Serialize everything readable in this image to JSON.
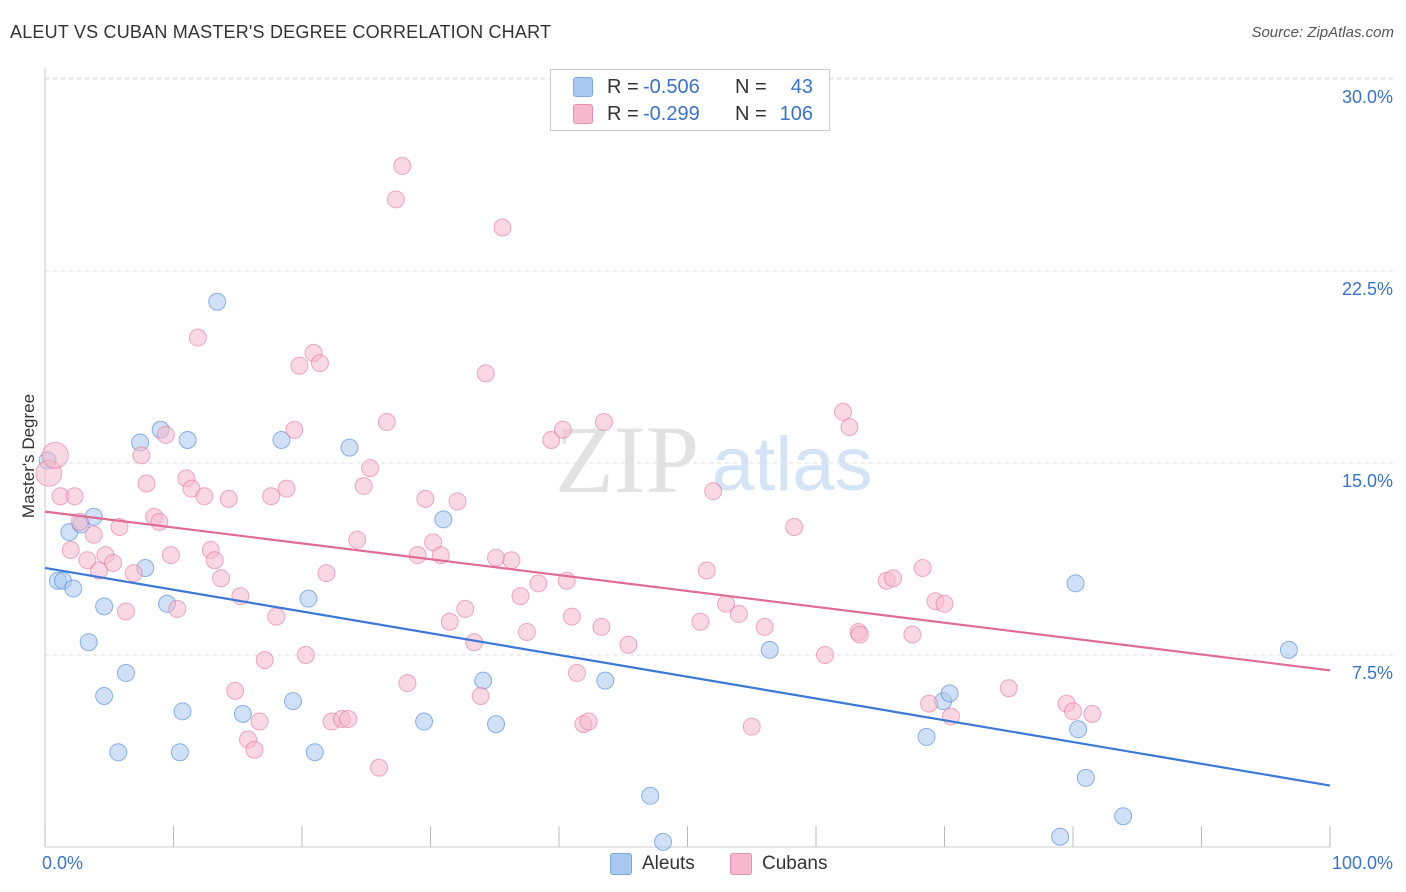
{
  "title": "ALEUT VS CUBAN MASTER'S DEGREE CORRELATION CHART",
  "source": "Source: ZipAtlas.com",
  "watermark": {
    "zip": "ZIP",
    "atlas": "atlas"
  },
  "legend": {
    "rows": [
      {
        "r_label": "R =",
        "r_value": "-0.506",
        "n_label": "N =",
        "n_value": "43",
        "color": "#a9c8f0"
      },
      {
        "r_label": "R =",
        "r_value": "-0.299",
        "n_label": "N =",
        "n_value": "106",
        "color": "#f5b8cc"
      }
    ]
  },
  "bottom_legend": [
    {
      "label": "Aleuts",
      "color": "#a9c8f0"
    },
    {
      "label": "Cubans",
      "color": "#f5b8cc"
    }
  ],
  "chart_data": {
    "type": "scatter",
    "title": "ALEUT VS CUBAN MASTER'S DEGREE CORRELATION CHART",
    "xlabel": "",
    "ylabel": "Master's Degree",
    "xlim": [
      0,
      100
    ],
    "ylim": [
      0,
      30
    ],
    "x_tick_labels": [
      "0.0%",
      "100.0%"
    ],
    "y_ticks": [
      7.5,
      15.0,
      22.5,
      30.0
    ],
    "y_tick_labels": [
      "7.5%",
      "15.0%",
      "22.5%",
      "30.0%"
    ],
    "grid": "horizontal dashed",
    "legend_position": "top-center",
    "series": [
      {
        "name": "Aleuts",
        "color": "#3b78d8",
        "fill": "#a9c8f0",
        "trend": {
          "x": [
            0,
            100
          ],
          "y": [
            10.9,
            2.4
          ]
        },
        "points": [
          [
            0.2,
            15.1
          ],
          [
            1.0,
            10.4
          ],
          [
            1.4,
            10.4
          ],
          [
            1.9,
            12.3
          ],
          [
            2.2,
            10.1
          ],
          [
            2.8,
            12.6
          ],
          [
            3.4,
            8.0
          ],
          [
            3.8,
            12.9
          ],
          [
            4.6,
            5.9
          ],
          [
            4.6,
            9.4
          ],
          [
            5.7,
            3.7
          ],
          [
            6.3,
            6.8
          ],
          [
            7.4,
            15.8
          ],
          [
            7.8,
            10.9
          ],
          [
            9.0,
            16.3
          ],
          [
            9.5,
            9.5
          ],
          [
            10.5,
            3.7
          ],
          [
            10.7,
            5.3
          ],
          [
            11.1,
            15.9
          ],
          [
            13.4,
            21.3
          ],
          [
            15.4,
            5.2
          ],
          [
            18.4,
            15.9
          ],
          [
            19.3,
            5.7
          ],
          [
            20.5,
            9.7
          ],
          [
            21.0,
            3.7
          ],
          [
            23.7,
            15.6
          ],
          [
            29.5,
            4.9
          ],
          [
            31.0,
            12.8
          ],
          [
            34.1,
            6.5
          ],
          [
            35.1,
            4.8
          ],
          [
            43.6,
            6.5
          ],
          [
            47.1,
            2.0
          ],
          [
            48.1,
            0.2
          ],
          [
            56.4,
            7.7
          ],
          [
            68.6,
            4.3
          ],
          [
            69.9,
            5.7
          ],
          [
            70.4,
            6.0
          ],
          [
            79.0,
            0.4
          ],
          [
            80.2,
            10.3
          ],
          [
            80.4,
            4.6
          ],
          [
            81.0,
            2.7
          ],
          [
            83.9,
            1.2
          ],
          [
            96.8,
            7.7
          ]
        ]
      },
      {
        "name": "Cubans",
        "color": "#e06b96",
        "fill": "#f5b8cc",
        "trend": {
          "x": [
            0,
            100
          ],
          "y": [
            13.1,
            6.9
          ]
        },
        "points": [
          [
            0.3,
            14.6
          ],
          [
            0.8,
            15.3
          ],
          [
            1.2,
            13.7
          ],
          [
            2.0,
            11.6
          ],
          [
            2.3,
            13.7
          ],
          [
            2.7,
            12.7
          ],
          [
            3.3,
            11.2
          ],
          [
            3.8,
            12.2
          ],
          [
            4.2,
            10.8
          ],
          [
            4.7,
            11.4
          ],
          [
            5.3,
            11.1
          ],
          [
            5.8,
            12.5
          ],
          [
            6.3,
            9.2
          ],
          [
            6.9,
            10.7
          ],
          [
            7.5,
            15.3
          ],
          [
            7.9,
            14.2
          ],
          [
            8.5,
            12.9
          ],
          [
            8.9,
            12.7
          ],
          [
            9.4,
            16.1
          ],
          [
            9.8,
            11.4
          ],
          [
            10.3,
            9.3
          ],
          [
            11.0,
            14.4
          ],
          [
            11.4,
            14.0
          ],
          [
            11.9,
            19.9
          ],
          [
            12.4,
            13.7
          ],
          [
            12.9,
            11.6
          ],
          [
            13.2,
            11.2
          ],
          [
            13.7,
            10.5
          ],
          [
            14.3,
            13.6
          ],
          [
            14.8,
            6.1
          ],
          [
            15.2,
            9.8
          ],
          [
            15.8,
            4.2
          ],
          [
            16.3,
            3.8
          ],
          [
            16.7,
            4.9
          ],
          [
            17.1,
            7.3
          ],
          [
            17.6,
            13.7
          ],
          [
            18.0,
            9.0
          ],
          [
            18.8,
            14.0
          ],
          [
            19.4,
            16.3
          ],
          [
            19.8,
            18.8
          ],
          [
            20.3,
            7.5
          ],
          [
            20.9,
            19.3
          ],
          [
            21.4,
            18.9
          ],
          [
            21.9,
            10.7
          ],
          [
            22.3,
            4.9
          ],
          [
            23.1,
            5.0
          ],
          [
            23.6,
            5.0
          ],
          [
            24.3,
            12.0
          ],
          [
            24.8,
            14.1
          ],
          [
            25.3,
            14.8
          ],
          [
            26.0,
            3.1
          ],
          [
            26.6,
            16.6
          ],
          [
            27.3,
            25.3
          ],
          [
            27.8,
            26.6
          ],
          [
            28.2,
            6.4
          ],
          [
            29.0,
            11.4
          ],
          [
            29.6,
            13.6
          ],
          [
            30.2,
            11.9
          ],
          [
            30.8,
            11.4
          ],
          [
            31.5,
            8.8
          ],
          [
            32.1,
            13.5
          ],
          [
            32.7,
            9.3
          ],
          [
            33.4,
            8.0
          ],
          [
            33.9,
            5.9
          ],
          [
            34.3,
            18.5
          ],
          [
            35.1,
            11.3
          ],
          [
            35.6,
            24.2
          ],
          [
            36.3,
            11.2
          ],
          [
            37.0,
            9.8
          ],
          [
            37.5,
            8.4
          ],
          [
            38.4,
            10.3
          ],
          [
            39.4,
            15.9
          ],
          [
            40.3,
            16.3
          ],
          [
            40.6,
            10.4
          ],
          [
            41.0,
            9.0
          ],
          [
            41.4,
            6.8
          ],
          [
            41.9,
            4.8
          ],
          [
            42.3,
            4.9
          ],
          [
            43.3,
            8.6
          ],
          [
            43.5,
            16.6
          ],
          [
            45.4,
            7.9
          ],
          [
            51.0,
            8.8
          ],
          [
            51.5,
            10.8
          ],
          [
            52.0,
            13.9
          ],
          [
            53.0,
            9.5
          ],
          [
            54.0,
            9.1
          ],
          [
            55.0,
            4.7
          ],
          [
            56.0,
            8.6
          ],
          [
            58.3,
            12.5
          ],
          [
            60.7,
            7.5
          ],
          [
            62.1,
            17.0
          ],
          [
            62.6,
            16.4
          ],
          [
            63.3,
            8.4
          ],
          [
            63.4,
            8.3
          ],
          [
            65.5,
            10.4
          ],
          [
            66.0,
            10.5
          ],
          [
            67.5,
            8.3
          ],
          [
            68.3,
            10.9
          ],
          [
            68.8,
            5.6
          ],
          [
            69.3,
            9.6
          ],
          [
            70.0,
            9.5
          ],
          [
            70.5,
            5.1
          ],
          [
            75.0,
            6.2
          ],
          [
            79.5,
            5.6
          ],
          [
            80.0,
            5.3
          ],
          [
            81.5,
            5.2
          ]
        ]
      }
    ]
  }
}
